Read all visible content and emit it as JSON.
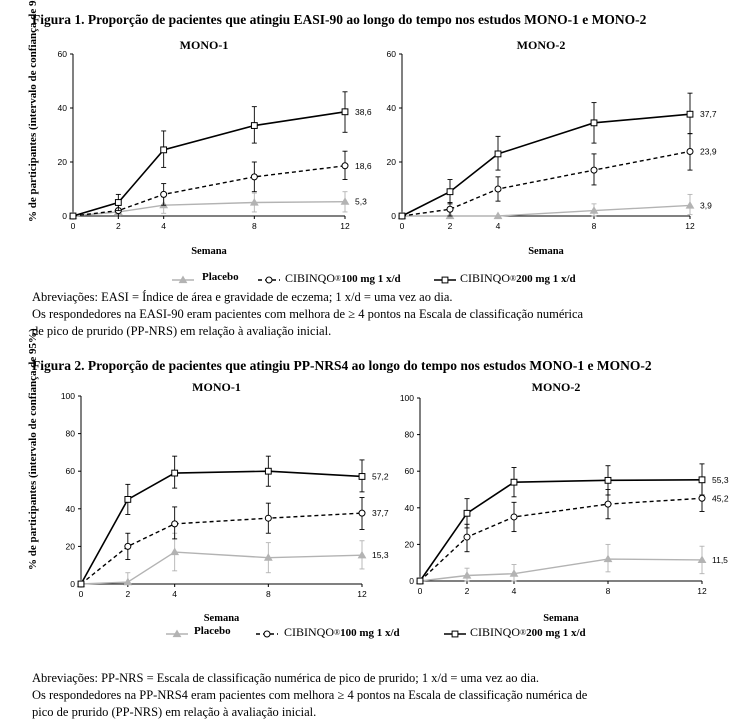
{
  "figure1": {
    "title": "Figura 1. Proporção de pacientes que atingiu EASI-90 ao longo do tempo nos estudos MONO-1 e MONO-2",
    "abbreviations": [
      "Abreviações: EASI = Índice de área e gravidade de eczema; 1 x/d = uma vez ao dia.",
      "Os respondedores na EASI-90 eram pacientes com melhora de ≥ 4 pontos na Escala de classificação numérica",
      "de pico de prurido (PP-NRS) em relação à avaliação inicial."
    ]
  },
  "figure2": {
    "title": "Figura 2. Proporção de pacientes que atingiu PP-NRS4 ao longo do tempo nos estudos MONO-1 e MONO-2",
    "abbreviations": [
      "Abreviações: PP-NRS = Escala de classificação numérica de pico de prurido; 1 x/d = uma vez ao dia.",
      "Os respondedores na PP-NRS4 eram pacientes com melhora ≥ 4 pontos na Escala de classificação numérica de",
      "pico de prurido (PP-NRS) em relação à avaliação inicial."
    ]
  },
  "legend": {
    "placebo": "Placebo",
    "dose100_brand": "CIBINQO",
    "dose100_rest": " 100 mg 1 x/d",
    "dose200_brand": "CIBINQO",
    "dose200_rest": " 200 mg 1 x/d",
    "registered": "®"
  },
  "colors": {
    "placebo": "#b3b3b3",
    "dose100": "#000000",
    "dose200": "#000000"
  },
  "chart_data": [
    {
      "type": "line",
      "title": "MONO-1",
      "ylabel": "% de participantes (intervalo de confiança de 95%)",
      "xlabel": "Semana",
      "ylim": [
        0,
        60
      ],
      "yticks": [
        0,
        20,
        40,
        60
      ],
      "xlim": [
        0,
        12
      ],
      "xticks": [
        0,
        2,
        4,
        8,
        12
      ],
      "series": [
        {
          "key": "placebo",
          "marker": "triangle",
          "dash": "solid",
          "x": [
            0,
            2,
            4,
            8,
            12
          ],
          "y": [
            0,
            1.5,
            4,
            5,
            5.3
          ],
          "lo": [
            0,
            0,
            1,
            1.5,
            1.5
          ],
          "hi": [
            0,
            3,
            7,
            8.5,
            9
          ],
          "end_label": "5,3"
        },
        {
          "key": "dose100",
          "marker": "circle",
          "dash": "dashed",
          "x": [
            0,
            2,
            4,
            8,
            12
          ],
          "y": [
            0,
            2,
            8,
            14.5,
            18.6
          ],
          "lo": [
            0,
            0,
            4,
            9,
            13.5
          ],
          "hi": [
            0,
            4,
            12,
            20,
            24
          ],
          "end_label": "18,6"
        },
        {
          "key": "dose200",
          "marker": "square",
          "dash": "solid",
          "x": [
            0,
            2,
            4,
            8,
            12
          ],
          "y": [
            0,
            5,
            24.5,
            33.5,
            38.6
          ],
          "lo": [
            0,
            2,
            18,
            27,
            31
          ],
          "hi": [
            0,
            8,
            31.5,
            40.5,
            46
          ],
          "end_label": "38,6"
        }
      ]
    },
    {
      "type": "line",
      "title": "MONO-2",
      "ylabel": "",
      "xlabel": "Semana",
      "ylim": [
        0,
        60
      ],
      "yticks": [
        0,
        20,
        40,
        60
      ],
      "xlim": [
        0,
        12
      ],
      "xticks": [
        0,
        2,
        4,
        8,
        12
      ],
      "series": [
        {
          "key": "placebo",
          "marker": "triangle",
          "dash": "solid",
          "x": [
            0,
            2,
            4,
            8,
            12
          ],
          "y": [
            0,
            0,
            0,
            2,
            3.9
          ],
          "lo": [
            0,
            0,
            0,
            0,
            0.5
          ],
          "hi": [
            0,
            0,
            0,
            4.5,
            8
          ],
          "end_label": "3,9"
        },
        {
          "key": "dose100",
          "marker": "circle",
          "dash": "dashed",
          "x": [
            0,
            2,
            4,
            8,
            12
          ],
          "y": [
            0,
            2.5,
            10,
            17,
            23.9
          ],
          "lo": [
            0,
            0,
            5.5,
            11.5,
            17
          ],
          "hi": [
            0,
            5,
            14.5,
            23,
            30.5
          ],
          "end_label": "23,9"
        },
        {
          "key": "dose200",
          "marker": "square",
          "dash": "solid",
          "x": [
            0,
            2,
            4,
            8,
            12
          ],
          "y": [
            0,
            9,
            23,
            34.5,
            37.7
          ],
          "lo": [
            0,
            4.5,
            17,
            27,
            30.5
          ],
          "hi": [
            0,
            13.5,
            29.5,
            42,
            45.5
          ],
          "end_label": "37,7"
        }
      ]
    },
    {
      "type": "line",
      "title": "MONO-1",
      "ylabel": "% de participantes (intervalo de confiança de 95%)",
      "xlabel": "Semana",
      "ylim": [
        0,
        100
      ],
      "yticks": [
        0,
        20,
        40,
        60,
        80,
        100
      ],
      "xlim": [
        0,
        12
      ],
      "xticks": [
        0,
        2,
        4,
        8,
        12
      ],
      "series": [
        {
          "key": "placebo",
          "marker": "triangle",
          "dash": "solid",
          "x": [
            0,
            2,
            4,
            8,
            12
          ],
          "y": [
            0,
            1,
            17,
            14,
            15.3
          ],
          "lo": [
            0,
            0,
            7,
            6,
            8
          ],
          "hi": [
            0,
            6,
            27,
            22,
            23
          ],
          "end_label": "15,3"
        },
        {
          "key": "dose100",
          "marker": "circle",
          "dash": "dashed",
          "x": [
            0,
            2,
            4,
            8,
            12
          ],
          "y": [
            0,
            20,
            32,
            35,
            37.7
          ],
          "lo": [
            0,
            13,
            24,
            27,
            29
          ],
          "hi": [
            0,
            27,
            41,
            43,
            46
          ],
          "end_label": "37,7"
        },
        {
          "key": "dose200",
          "marker": "square",
          "dash": "solid",
          "x": [
            0,
            2,
            4,
            8,
            12
          ],
          "y": [
            0,
            45,
            59,
            60,
            57.2
          ],
          "lo": [
            0,
            37,
            51,
            52,
            49
          ],
          "hi": [
            0,
            53,
            68,
            68,
            66
          ],
          "end_label": "57,2"
        }
      ]
    },
    {
      "type": "line",
      "title": "MONO-2",
      "ylabel": "",
      "xlabel": "Semana",
      "ylim": [
        0,
        100
      ],
      "yticks": [
        0,
        20,
        40,
        60,
        80,
        100
      ],
      "xlim": [
        0,
        12
      ],
      "xticks": [
        0,
        2,
        4,
        8,
        12
      ],
      "series": [
        {
          "key": "placebo",
          "marker": "triangle",
          "dash": "solid",
          "x": [
            0,
            2,
            4,
            8,
            12
          ],
          "y": [
            0,
            3,
            4,
            12,
            11.5
          ],
          "lo": [
            0,
            0,
            0,
            5,
            4
          ],
          "hi": [
            0,
            7,
            9,
            20,
            19
          ],
          "end_label": "11,5"
        },
        {
          "key": "dose100",
          "marker": "circle",
          "dash": "dashed",
          "x": [
            0,
            2,
            4,
            8,
            12
          ],
          "y": [
            0,
            24,
            35,
            42,
            45.2
          ],
          "lo": [
            0,
            16,
            27,
            34,
            38
          ],
          "hi": [
            0,
            31,
            43,
            50,
            54
          ],
          "end_label": "45,2"
        },
        {
          "key": "dose200",
          "marker": "square",
          "dash": "solid",
          "x": [
            0,
            2,
            4,
            8,
            12
          ],
          "y": [
            0,
            37,
            54,
            55,
            55.3
          ],
          "lo": [
            0,
            29,
            46,
            47,
            47
          ],
          "hi": [
            0,
            45,
            62,
            63,
            64
          ],
          "end_label": "55,3"
        }
      ]
    }
  ]
}
